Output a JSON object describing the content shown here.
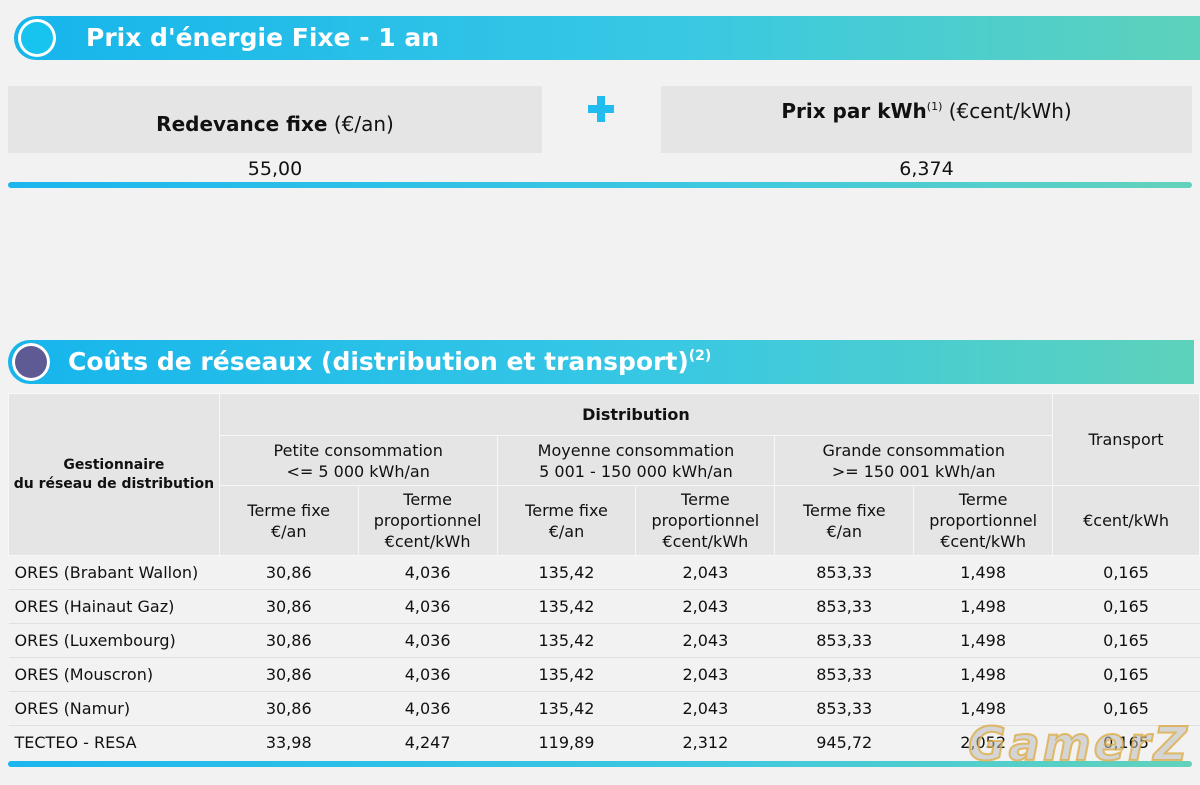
{
  "section1": {
    "title": "Prix d'énergie Fixe - 1 an",
    "fee_label_bold": "Redevance fixe",
    "fee_unit": "(€/an)",
    "fee_value": "55,00",
    "kwh_label_bold": "Prix par kWh",
    "kwh_note": "(1)",
    "kwh_unit": "(€cent/kWh)",
    "kwh_value": "6,374"
  },
  "section2": {
    "title": "Coûts de réseaux (distribution et transport)",
    "title_note": "(2)"
  },
  "table": {
    "dso_header_line1": "Gestionnaire",
    "dso_header_line2": "du réseau de distribution",
    "distribution": "Distribution",
    "transport": "Transport",
    "groups": [
      {
        "line1": "Petite consommation",
        "line2": "<= 5 000 kWh/an"
      },
      {
        "line1": "Moyenne consommation",
        "line2": "5 001 - 150 000 kWh/an"
      },
      {
        "line1": "Grande consommation",
        "line2": ">= 150 001 kWh/an"
      }
    ],
    "sub_fixe_line1": "Terme fixe",
    "sub_fixe_line2": "€/an",
    "sub_prop_line1": "Terme",
    "sub_prop_line2": "proportionnel",
    "sub_prop_line3": "€cent/kWh",
    "transport_unit": "€cent/kWh",
    "rows": [
      [
        "ORES (Brabant Wallon)",
        "30,86",
        "4,036",
        "135,42",
        "2,043",
        "853,33",
        "1,498",
        "0,165"
      ],
      [
        "ORES (Hainaut Gaz)",
        "30,86",
        "4,036",
        "135,42",
        "2,043",
        "853,33",
        "1,498",
        "0,165"
      ],
      [
        "ORES (Luxembourg)",
        "30,86",
        "4,036",
        "135,42",
        "2,043",
        "853,33",
        "1,498",
        "0,165"
      ],
      [
        "ORES (Mouscron)",
        "30,86",
        "4,036",
        "135,42",
        "2,043",
        "853,33",
        "1,498",
        "0,165"
      ],
      [
        "ORES (Namur)",
        "30,86",
        "4,036",
        "135,42",
        "2,043",
        "853,33",
        "1,498",
        "0,165"
      ],
      [
        "TECTEO - RESA",
        "33,98",
        "4,247",
        "119,89",
        "2,312",
        "945,72",
        "2,052",
        "0,165"
      ]
    ]
  },
  "watermark": "GamerZ",
  "colors": {
    "accent_blue": "#16b5ec",
    "accent_teal": "#5dd2bb",
    "purple": "#5e5a93"
  }
}
